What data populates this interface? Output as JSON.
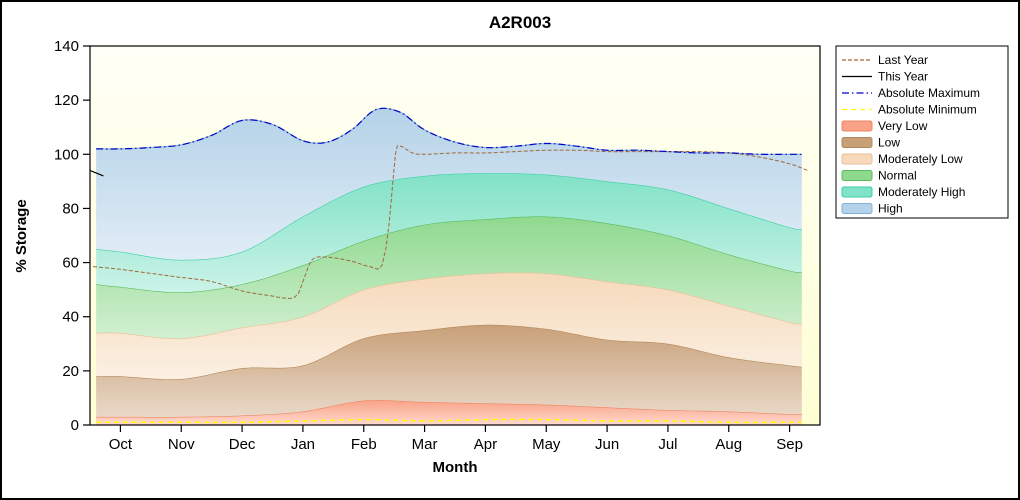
{
  "chart_data": {
    "type": "area",
    "title": "A2R003",
    "xlabel": "Month",
    "ylabel": "% Storage",
    "xlim": [
      -0.5,
      11.5
    ],
    "ylim": [
      0,
      140
    ],
    "x_tick_labels": [
      "Oct",
      "Nov",
      "Dec",
      "Jan",
      "Feb",
      "Mar",
      "Apr",
      "May",
      "Jun",
      "Jul",
      "Aug",
      "Sep"
    ],
    "y_ticks": [
      0,
      20,
      40,
      60,
      80,
      100,
      120,
      140
    ],
    "plot_bg": {
      "top": "#fffff6",
      "bottom": "#ffffd4"
    },
    "bands": [
      {
        "name": "Very Low",
        "fill": "#f9a287",
        "edge": "#ee8560",
        "x": [
          -0.4,
          0,
          1,
          2,
          3,
          4,
          5,
          6,
          7,
          8,
          9,
          10,
          11,
          11.2
        ],
        "top": [
          3,
          3,
          3,
          3.5,
          5,
          9,
          8.5,
          8,
          7.5,
          6.5,
          5.5,
          5,
          4,
          4
        ]
      },
      {
        "name": "Low",
        "fill": "#c8a078",
        "edge": "#b3885c",
        "x": [
          -0.4,
          0,
          1,
          2,
          3,
          4,
          5,
          6,
          7,
          8,
          9,
          10,
          11,
          11.2
        ],
        "top": [
          18,
          18,
          17,
          21,
          22,
          32,
          35,
          37,
          35.5,
          31.5,
          30,
          25,
          22,
          21.5
        ]
      },
      {
        "name": "Moderately Low",
        "fill": "#f6d9ba",
        "edge": "#eabf94",
        "x": [
          -0.4,
          0,
          1,
          2,
          3,
          4,
          5,
          6,
          7,
          8,
          9,
          10,
          11,
          11.2
        ],
        "top": [
          34,
          34,
          32,
          36,
          40,
          50,
          54,
          56,
          56,
          53,
          50,
          44,
          38,
          37.5
        ]
      },
      {
        "name": "Normal",
        "fill": "#8fd98f",
        "edge": "#5abb5a",
        "x": [
          -0.4,
          0,
          1,
          2,
          3,
          4,
          5,
          6,
          7,
          8,
          9,
          10,
          11,
          11.2
        ],
        "top": [
          52,
          51,
          49,
          52,
          59,
          68,
          74,
          76,
          77,
          74.5,
          70,
          63,
          57,
          56.5
        ]
      },
      {
        "name": "Moderately High",
        "fill": "#80e2c6",
        "edge": "#3ccfa5",
        "x": [
          -0.4,
          0,
          1,
          2,
          3,
          4,
          5,
          6,
          7,
          8,
          9,
          10,
          11,
          11.2
        ],
        "top": [
          65,
          64,
          61,
          64,
          77,
          88,
          92,
          93,
          92.5,
          90,
          87,
          80,
          73,
          72.5
        ]
      },
      {
        "name": "High",
        "fill": "#b4d2e8",
        "edge": "#85b1d6",
        "x": [
          -0.4,
          0,
          0.5,
          1,
          1.5,
          2,
          2.5,
          3,
          3.4,
          3.8,
          4.2,
          4.6,
          5,
          5.5,
          6,
          6.5,
          7,
          7.5,
          8,
          8.5,
          9,
          9.5,
          10,
          10.5,
          11,
          11.2
        ],
        "top": [
          102,
          102,
          102.5,
          103.5,
          107,
          112.5,
          111,
          105,
          104.5,
          109,
          116.5,
          115.5,
          109,
          104.5,
          102.5,
          103,
          104,
          103,
          101.5,
          101.5,
          101,
          100.5,
          100.5,
          100,
          100,
          100
        ]
      }
    ],
    "lines": [
      {
        "name": "Last Year",
        "color": "#a0683a",
        "width": 1,
        "dash": "4 2",
        "x": [
          -0.45,
          0,
          0.5,
          1,
          1.5,
          2,
          2.4,
          2.85,
          3.0,
          3.15,
          3.4,
          3.8,
          4.1,
          4.3,
          4.42,
          4.52,
          4.6,
          4.8,
          5,
          5.5,
          6,
          6.5,
          7,
          7.5,
          8,
          8.5,
          9,
          9.5,
          10,
          10.5,
          11,
          11.3
        ],
        "y": [
          58.5,
          57.5,
          56,
          54.5,
          53,
          49.5,
          48,
          47,
          53,
          61,
          62,
          60.5,
          58.5,
          59,
          75,
          100,
          103,
          100.5,
          100,
          100.5,
          100.5,
          101,
          101.5,
          101.5,
          101,
          101,
          101,
          101,
          100.5,
          99,
          96.5,
          94
        ]
      },
      {
        "name": "This Year",
        "color": "#000000",
        "width": 1.2,
        "dash": "",
        "x": [
          -0.5,
          -0.28
        ],
        "y": [
          94,
          92
        ]
      },
      {
        "name": "Absolute Maximum",
        "color": "#0000cc",
        "width": 1.2,
        "dash": "7 3 1.5 3",
        "x": [
          -0.4,
          0,
          0.5,
          1,
          1.5,
          2,
          2.5,
          3,
          3.4,
          3.8,
          4.2,
          4.6,
          5,
          5.5,
          6,
          6.5,
          7,
          7.5,
          8,
          8.5,
          9,
          9.5,
          10,
          10.5,
          11,
          11.2
        ],
        "y": [
          102,
          102,
          102.5,
          103.5,
          107,
          112.5,
          111,
          105,
          104.5,
          109,
          116.5,
          115.5,
          109,
          104.5,
          102.5,
          103,
          104,
          103,
          101.5,
          101.5,
          101,
          100.5,
          100.5,
          100,
          100,
          100
        ]
      },
      {
        "name": "Absolute Minimum",
        "color": "#ffff00",
        "width": 1.5,
        "dash": "5 4",
        "x": [
          -0.4,
          0,
          1,
          2,
          3,
          4,
          5,
          6,
          7,
          8,
          9,
          10,
          11,
          11.2
        ],
        "y": [
          1,
          1,
          1,
          1,
          1.5,
          2,
          1.5,
          2,
          2,
          1.5,
          1.5,
          1,
          1,
          1
        ]
      }
    ],
    "legend": [
      {
        "label": "Last Year",
        "swatch": "line",
        "color": "#a0683a",
        "dash": "4 2"
      },
      {
        "label": "This Year",
        "swatch": "line",
        "color": "#000000",
        "dash": ""
      },
      {
        "label": "Absolute Maximum",
        "swatch": "line",
        "color": "#0000cc",
        "dash": "7 3 1.5 3"
      },
      {
        "label": "Absolute Minimum",
        "swatch": "line",
        "color": "#ffff00",
        "dash": "5 4"
      },
      {
        "label": "Very Low",
        "swatch": "band",
        "color": "#f9a287",
        "edge": "#ee8560"
      },
      {
        "label": "Low",
        "swatch": "band",
        "color": "#c8a078",
        "edge": "#b3885c"
      },
      {
        "label": "Moderately Low",
        "swatch": "band",
        "color": "#f6d9ba",
        "edge": "#eabf94"
      },
      {
        "label": "Normal",
        "swatch": "band",
        "color": "#8fd98f",
        "edge": "#5abb5a"
      },
      {
        "label": "Moderately High",
        "swatch": "band",
        "color": "#80e2c6",
        "edge": "#3ccfa5"
      },
      {
        "label": "High",
        "swatch": "band",
        "color": "#b4d2e8",
        "edge": "#85b1d6"
      }
    ]
  }
}
